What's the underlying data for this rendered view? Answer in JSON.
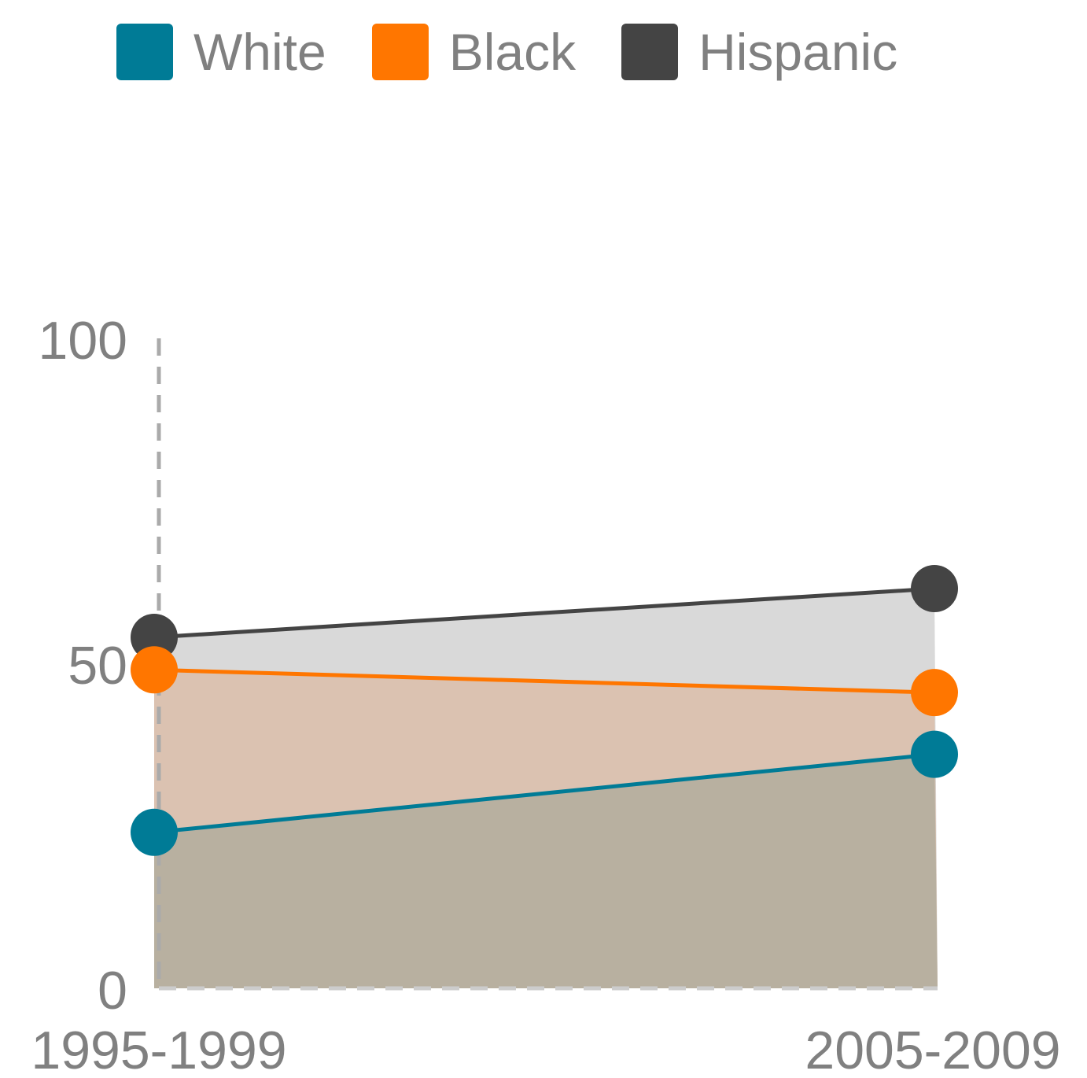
{
  "chart_data": {
    "type": "area",
    "categories": [
      "1995-1999",
      "2005-2009"
    ],
    "series": [
      {
        "name": "White",
        "values": [
          24,
          36
        ],
        "color": "#007b96"
      },
      {
        "name": "Black",
        "values": [
          49,
          45.5
        ],
        "color": "#ff7600"
      },
      {
        "name": "Hispanic",
        "values": [
          54,
          61.5
        ],
        "color": "#444444"
      }
    ],
    "y_ticks": [
      "0",
      "50",
      "100"
    ],
    "ylim": [
      0,
      100
    ],
    "grid": false,
    "legend_position": "top",
    "fill_colors": {
      "White": "#b8b0a0",
      "Black": "#dbc2b1",
      "Hispanic": "#d9d9d9"
    }
  }
}
